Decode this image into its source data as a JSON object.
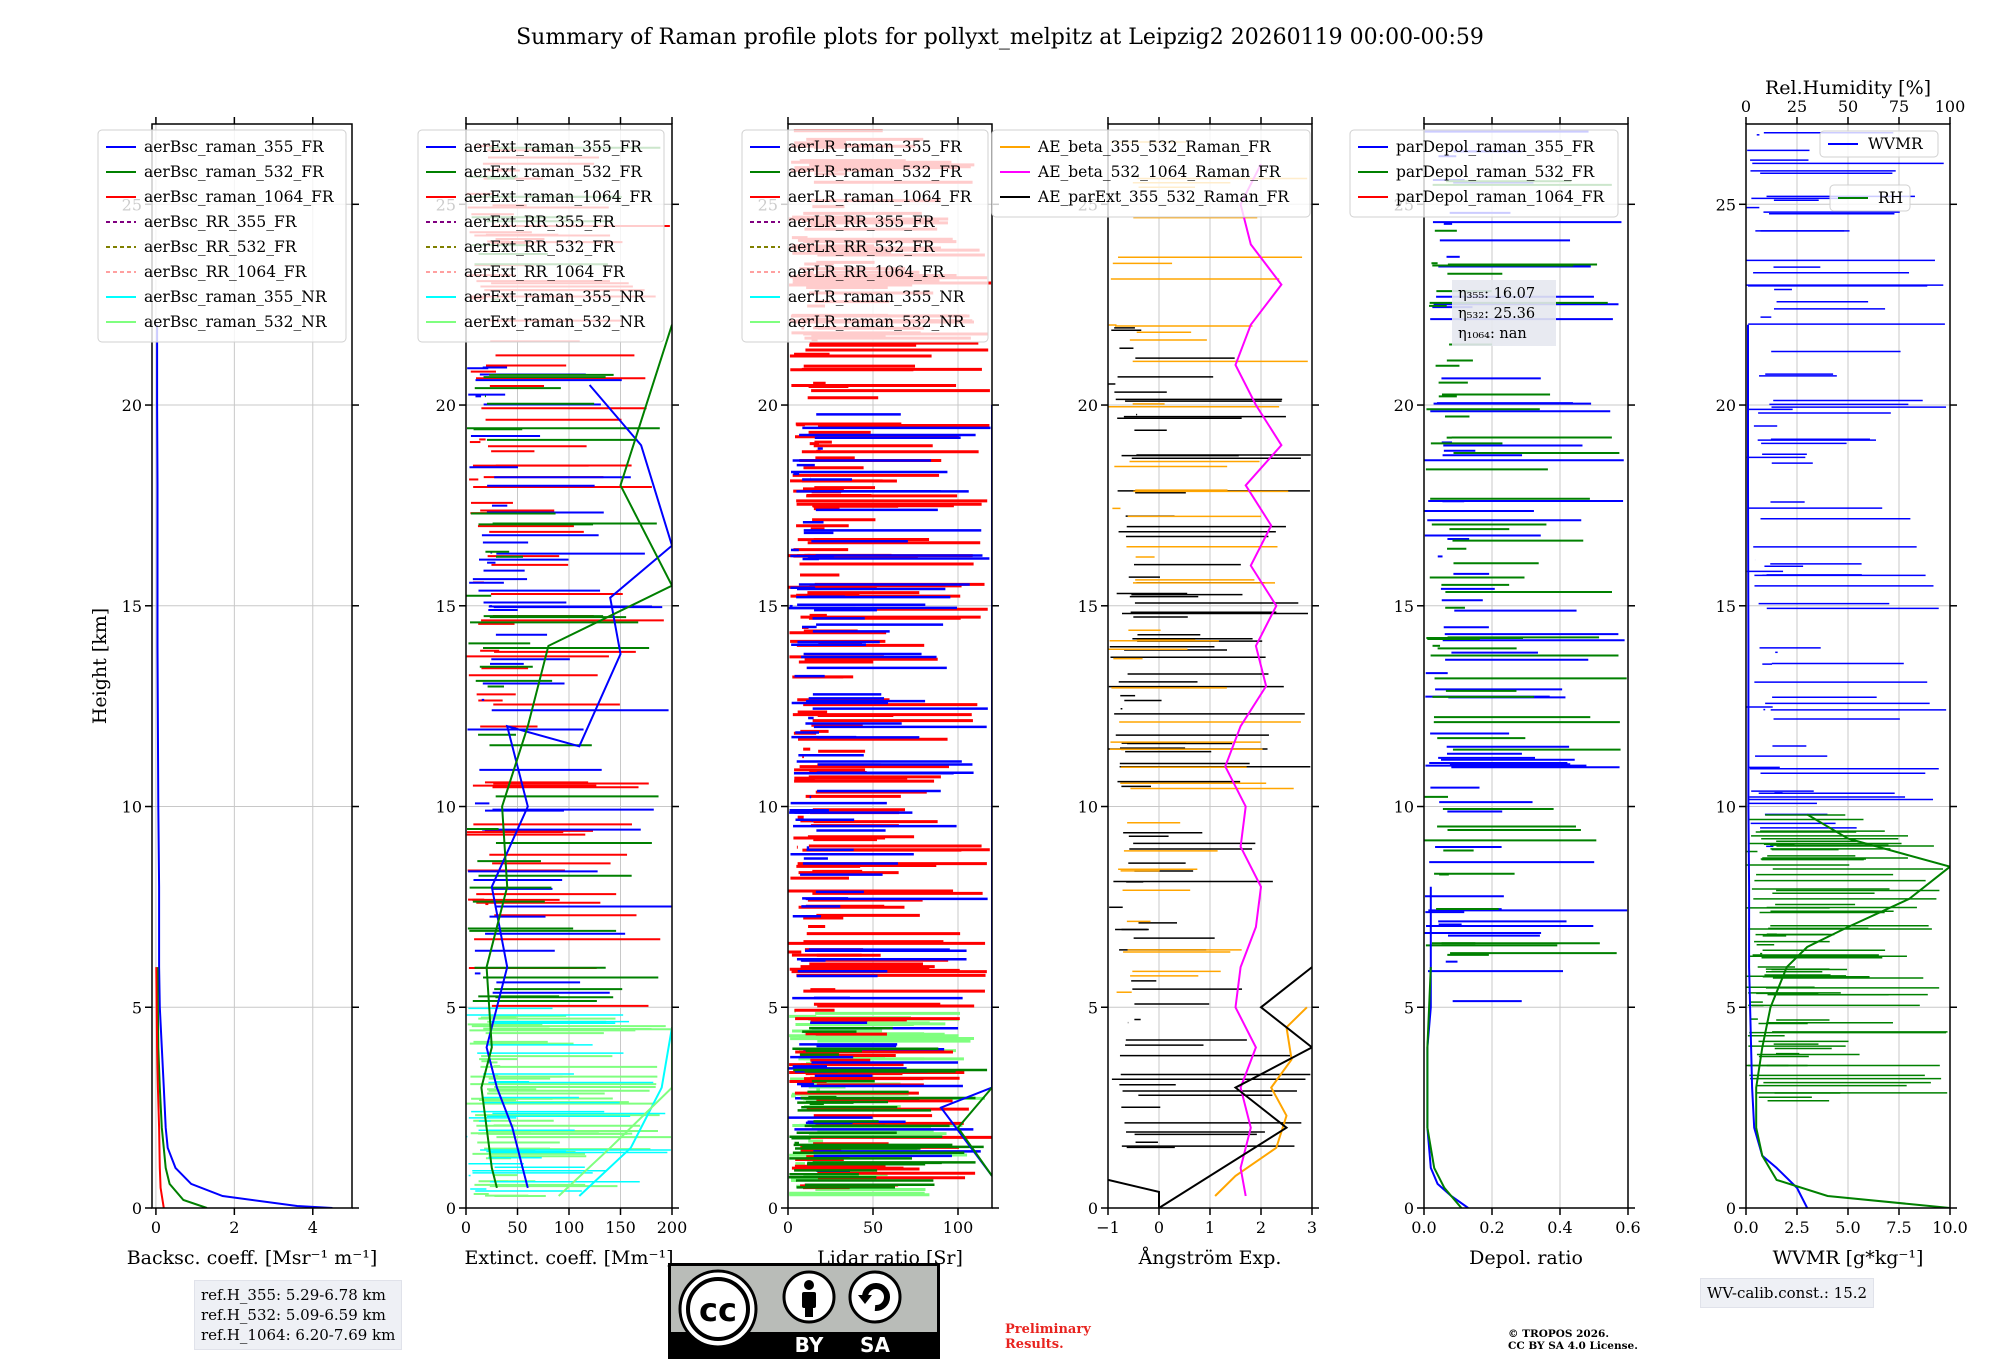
{
  "title": "Summary of Raman profile plots for pollyxt_melpitz at Leipzig2 20260119 00:00-00:59",
  "shared_y": {
    "label": "Height [km]",
    "ticks": [
      0,
      5,
      10,
      15,
      20,
      25
    ],
    "ylim": [
      0,
      27
    ]
  },
  "chart_data": [
    {
      "type": "line",
      "name": "backscatter",
      "xlabel": "Backsc. coeff. [Msr⁻¹ m⁻¹]",
      "xlim": [
        -0.1,
        5
      ],
      "xticks": [
        0,
        2,
        4
      ],
      "series": [
        {
          "name": "aerBsc_raman_355_FR",
          "color": "#0000ff",
          "style": "solid",
          "x": [
            4.5,
            3.6,
            1.7,
            0.9,
            0.5,
            0.3,
            0.25,
            0.2,
            0.15,
            0.12,
            0.1,
            0.08,
            0.08,
            0.06,
            0.05,
            0.04,
            0.04,
            0.04,
            0.03,
            0.03
          ],
          "y": [
            0.0,
            0.05,
            0.3,
            0.6,
            1.0,
            1.5,
            2.0,
            3.0,
            4.0,
            4.6,
            5.0,
            6.0,
            8.0,
            10.0,
            12.0,
            14.0,
            16.0,
            18.0,
            20.0,
            22.0
          ]
        },
        {
          "name": "aerBsc_raman_532_FR",
          "color": "#008000",
          "style": "solid",
          "x": [
            1.3,
            0.7,
            0.35,
            0.25,
            0.15,
            0.1,
            0.06,
            0.05,
            0.04
          ],
          "y": [
            0.0,
            0.2,
            0.6,
            1.0,
            2.0,
            3.0,
            4.0,
            5.0,
            6.0
          ]
        },
        {
          "name": "aerBsc_raman_1064_FR",
          "color": "#ff0000",
          "style": "solid",
          "x": [
            0.2,
            0.12,
            0.1,
            0.08,
            0.05,
            0.03,
            0.02,
            0.01
          ],
          "y": [
            0.0,
            0.5,
            1.0,
            2.0,
            3.0,
            4.0,
            5.0,
            6.0
          ]
        },
        {
          "name": "aerBsc_RR_355_FR",
          "color": "#800080",
          "style": "dash",
          "x": [],
          "y": []
        },
        {
          "name": "aerBsc_RR_532_FR",
          "color": "#808000",
          "style": "dash",
          "x": [],
          "y": []
        },
        {
          "name": "aerBsc_RR_1064_FR",
          "color": "#ffa0a0",
          "style": "dash",
          "x": [],
          "y": []
        },
        {
          "name": "aerBsc_raman_355_NR",
          "color": "#00ffff",
          "style": "solid",
          "x": [],
          "y": []
        },
        {
          "name": "aerBsc_raman_532_NR",
          "color": "#7fff7f",
          "style": "solid",
          "x": [],
          "y": []
        }
      ]
    },
    {
      "type": "line",
      "name": "extinction",
      "xlabel": "Extinct. coeff. [Mm⁻¹]",
      "xlim": [
        0,
        200
      ],
      "xticks": [
        0,
        50,
        100,
        150,
        200
      ],
      "series": [
        {
          "name": "aerExt_raman_355_FR",
          "color": "#0000ff",
          "style": "solid",
          "x": [
            60,
            55,
            50,
            45,
            30,
            20,
            40,
            25,
            60,
            40,
            110,
            150,
            140,
            200,
            170,
            120
          ],
          "y": [
            0.5,
            1.0,
            1.5,
            2.0,
            3.0,
            4.0,
            6.0,
            8.0,
            10.0,
            12.0,
            11.5,
            13.8,
            15.2,
            16.5,
            19.0,
            20.5
          ]
        },
        {
          "name": "aerExt_raman_532_FR",
          "color": "#008000",
          "style": "solid",
          "x": [
            30,
            25,
            20,
            15,
            25,
            20,
            40,
            35,
            60,
            80,
            200,
            150,
            200
          ],
          "y": [
            0.5,
            1.0,
            2.0,
            3.0,
            4.0,
            6.0,
            8.0,
            10.0,
            12.0,
            14.0,
            15.5,
            18.0,
            22.0
          ]
        },
        {
          "name": "aerExt_raman_1064_FR",
          "color": "#ff0000",
          "style": "solid",
          "x": [],
          "y": []
        },
        {
          "name": "aerExt_RR_355_FR",
          "color": "#800080",
          "style": "dash",
          "x": [],
          "y": []
        },
        {
          "name": "aerExt_RR_532_FR",
          "color": "#808000",
          "style": "dash",
          "x": [],
          "y": []
        },
        {
          "name": "aerExt_RR_1064_FR",
          "color": "#ffa0a0",
          "style": "dash",
          "x": [],
          "y": []
        },
        {
          "name": "aerExt_raman_355_NR",
          "color": "#00ffff",
          "style": "solid",
          "x": [
            110,
            160,
            190,
            200
          ],
          "y": [
            0.3,
            1.5,
            3.0,
            4.5
          ]
        },
        {
          "name": "aerExt_raman_532_NR",
          "color": "#7fff7f",
          "style": "solid",
          "x": [
            90,
            140,
            200,
            200
          ],
          "y": [
            0.3,
            1.5,
            3.0,
            4.5
          ]
        }
      ]
    },
    {
      "type": "line",
      "name": "lidar_ratio",
      "xlabel": "Lidar ratio [Sr]",
      "xlim": [
        0,
        120
      ],
      "xticks": [
        0,
        50,
        100
      ],
      "series": [
        {
          "name": "aerLR_raman_355_FR",
          "color": "#0000ff",
          "style": "solid",
          "x": [
            120,
            90,
            120,
            120
          ],
          "y": [
            0.8,
            2.5,
            3.0,
            20.0
          ]
        },
        {
          "name": "aerLR_raman_532_FR",
          "color": "#008000",
          "style": "solid",
          "x": [
            120,
            100,
            120
          ],
          "y": [
            0.8,
            2.0,
            3.0
          ]
        },
        {
          "name": "aerLR_raman_1064_FR",
          "color": "#ff0000",
          "style": "solid",
          "x": [],
          "y": []
        },
        {
          "name": "aerLR_RR_355_FR",
          "color": "#800080",
          "style": "dash",
          "x": [],
          "y": []
        },
        {
          "name": "aerLR_RR_532_FR",
          "color": "#808000",
          "style": "dash",
          "x": [],
          "y": []
        },
        {
          "name": "aerLR_RR_1064_FR",
          "color": "#ffa0a0",
          "style": "dash",
          "x": [],
          "y": []
        },
        {
          "name": "aerLR_raman_355_NR",
          "color": "#00ffff",
          "style": "solid",
          "x": [],
          "y": []
        },
        {
          "name": "aerLR_raman_532_NR",
          "color": "#7fff7f",
          "style": "solid",
          "x": [],
          "y": []
        }
      ]
    },
    {
      "type": "line",
      "name": "angstrom",
      "xlabel": "Ångström Exp.",
      "xlim": [
        -1,
        3
      ],
      "xticks": [
        -1,
        0,
        1,
        2,
        3
      ],
      "series": [
        {
          "name": "AE_beta_355_532_Raman_FR",
          "color": "#ffa500",
          "style": "solid",
          "x": [
            1.1,
            1.5,
            2.3,
            2.5,
            2.2,
            2.6,
            2.5,
            2.9
          ],
          "y": [
            0.3,
            0.8,
            1.5,
            2.3,
            3.0,
            3.7,
            4.5,
            5.0
          ]
        },
        {
          "name": "AE_beta_532_1064_Raman_FR",
          "color": "#ff00ff",
          "style": "solid",
          "x": [
            1.7,
            1.6,
            1.8,
            1.6,
            1.9,
            1.5,
            1.6,
            1.9,
            2.0,
            1.6,
            1.7,
            1.3,
            1.6,
            2.1,
            1.9,
            2.3,
            1.8,
            2.2,
            1.7,
            2.4,
            1.9,
            1.5,
            1.8,
            2.4,
            1.8,
            1.6,
            2.0
          ],
          "y": [
            0.3,
            1.0,
            2.0,
            3.0,
            4.0,
            5.0,
            6.0,
            7.0,
            8.0,
            9.0,
            10.0,
            11.0,
            12.0,
            13.0,
            14.0,
            15.0,
            16.0,
            17.0,
            18.0,
            19.0,
            20.0,
            21.0,
            22.0,
            23.0,
            24.0,
            25.0,
            26.0
          ]
        },
        {
          "name": "AE_parExt_355_532_Raman_FR",
          "color": "#000000",
          "style": "solid",
          "x": [
            -1,
            0.0,
            0.0,
            2.5,
            1.5,
            3.0,
            2.0,
            3.0
          ],
          "y": [
            0.7,
            0.4,
            0.0,
            2.0,
            3.0,
            4.0,
            5.0,
            6.0
          ]
        }
      ]
    },
    {
      "type": "line",
      "name": "depol",
      "xlabel": "Depol. ratio",
      "xlim": [
        0,
        0.6
      ],
      "xticks": [
        0.0,
        0.2,
        0.4,
        0.6
      ],
      "annotations": [
        "η₃₅₅: 16.07",
        "η₅₃₂: 25.36",
        "η₁₀₆₄: nan"
      ],
      "series": [
        {
          "name": "parDepol_raman_355_FR",
          "color": "#0000ff",
          "style": "solid",
          "x": [
            0.13,
            0.08,
            0.04,
            0.02,
            0.01,
            0.01,
            0.02,
            0.02,
            0.02
          ],
          "y": [
            0.0,
            0.3,
            0.6,
            1.0,
            2.0,
            4.0,
            5.0,
            6.0,
            8.0
          ]
        },
        {
          "name": "parDepol_raman_532_FR",
          "color": "#008000",
          "style": "solid",
          "x": [
            0.11,
            0.06,
            0.03,
            0.01,
            0.01,
            0.02
          ],
          "y": [
            0.0,
            0.5,
            1.0,
            2.0,
            4.0,
            6.0
          ]
        },
        {
          "name": "parDepol_raman_1064_FR",
          "color": "#ff0000",
          "style": "solid",
          "x": [],
          "y": []
        }
      ]
    },
    {
      "type": "line",
      "name": "water_vapor",
      "xlabel": "WVMR [g*kg⁻¹]",
      "xlim": [
        0,
        10
      ],
      "xticks": [
        0.0,
        2.5,
        5.0,
        7.5,
        10.0
      ],
      "top_axis": {
        "label": "Rel.Humidity [%]",
        "xlim": [
          0,
          100
        ],
        "ticks": [
          0,
          25,
          50,
          75,
          100
        ]
      },
      "series": [
        {
          "name": "WVMR",
          "color": "#0000ff",
          "style": "solid",
          "x": [
            3.0,
            2.5,
            1.5,
            0.8,
            0.4,
            0.3,
            0.25,
            0.2,
            0.15,
            0.15,
            0.12,
            0.12,
            0.1,
            0.1
          ],
          "y": [
            0.0,
            0.5,
            1.0,
            1.3,
            2.0,
            3.0,
            4.0,
            5.0,
            6.0,
            8.0,
            10.0,
            14.0,
            18.0,
            22.0
          ]
        },
        {
          "name": "RH",
          "color": "#008000",
          "style": "solid",
          "x": [
            100,
            80,
            40,
            15,
            8,
            5,
            5,
            8,
            12,
            20,
            30,
            50,
            80,
            100,
            50,
            30
          ],
          "y": [
            0.0,
            0.1,
            0.3,
            0.7,
            1.3,
            2.0,
            3.0,
            4.0,
            5.0,
            6.0,
            6.5,
            7.0,
            7.7,
            8.5,
            9.2,
            9.8
          ]
        }
      ]
    }
  ],
  "ref_heights": [
    "ref.H_355: 5.29-6.78 km",
    "ref.H_532: 5.09-6.59 km",
    "ref.H_1064: 6.20-7.69 km"
  ],
  "wv_calib": "WV-calib.const.: 15.2",
  "license": {
    "by": "BY",
    "sa": "SA",
    "cc": "cc"
  },
  "preliminary": [
    "Preliminary",
    "Results."
  ],
  "copyright": [
    "© TROPOS 2026.",
    "CC BY SA 4.0 License."
  ]
}
